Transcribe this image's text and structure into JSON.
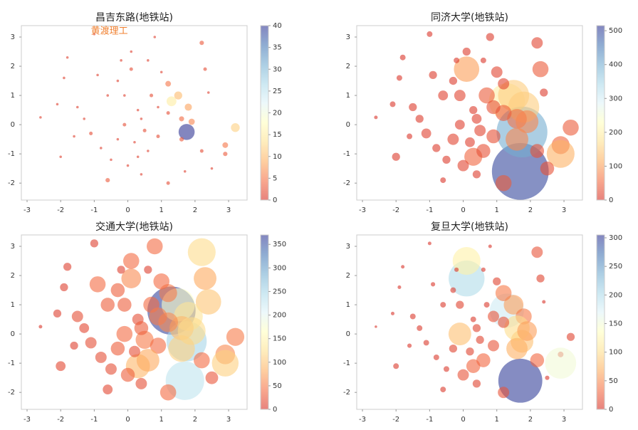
{
  "chart_data": [
    {
      "type": "scatter",
      "title": "昌吉东路(地铁站)",
      "cmap": "RdYlBu",
      "alpha": 0.6,
      "annotations": [
        {
          "text": "黄渡理工",
          "x": -1.1,
          "y": 3.2,
          "color": "#f08030"
        }
      ],
      "x": [
        1.7,
        1.3,
        1.75,
        1.5,
        2.2,
        2.3,
        2.4,
        3.2,
        2.9,
        2.9,
        2.5,
        0.1,
        0.8,
        0.7,
        0.3,
        -0.1,
        0.5,
        1.8,
        1.6,
        1.9,
        1.6,
        1.2,
        0.9,
        1.2,
        0.1,
        -0.6,
        -0.9,
        -1.0,
        -0.1,
        0.3,
        -0.3,
        -1.1,
        -1.5,
        -1.9,
        -2.0,
        -0.6,
        0.0,
        0.4,
        0.6,
        1.2,
        -0.8,
        -1.3,
        -1.6,
        0.2,
        0.9,
        -0.2,
        1.0,
        -2.6,
        -1.8,
        -0.5,
        0.6,
        2.2,
        -2.1,
        -0.3,
        0.4
      ],
      "y": [
        -1.6,
        0.8,
        -0.25,
        1.0,
        2.8,
        1.9,
        1.1,
        -0.1,
        -0.7,
        -1.0,
        -1.5,
        1.9,
        3.0,
        1.0,
        -1.1,
        0.0,
        -0.2,
        0.6,
        0.2,
        0.1,
        -0.5,
        0.4,
        -0.4,
        1.4,
        2.5,
        1.0,
        1.7,
        3.1,
        1.0,
        0.5,
        -0.5,
        -0.3,
        0.6,
        1.6,
        -1.1,
        -1.9,
        -1.4,
        -1.7,
        -0.9,
        -2.0,
        -0.8,
        0.2,
        -0.4,
        -0.6,
        0.6,
        2.2,
        1.8,
        0.25,
        2.3,
        -1.2,
        2.2,
        -0.9,
        0.7,
        1.5,
        0.2
      ],
      "sizes": [
        1,
        15,
        40,
        10,
        3,
        2,
        1,
        12,
        5,
        3,
        1,
        2,
        1,
        2,
        1,
        2,
        2,
        8,
        4,
        6,
        3,
        2,
        2,
        5,
        1,
        1,
        1,
        1,
        1,
        1,
        1,
        2,
        1,
        1,
        1,
        3,
        1,
        1,
        1,
        2,
        1,
        1,
        1,
        1,
        1,
        1,
        1,
        1,
        1,
        1,
        1,
        2,
        1,
        1,
        1
      ],
      "xlim": [
        -3.17,
        3.55
      ],
      "ylim": [
        -2.58,
        3.39
      ],
      "xticks": [
        -3,
        -2,
        -1,
        0,
        1,
        2,
        3
      ],
      "yticks": [
        -2,
        -1,
        0,
        1,
        2,
        3
      ],
      "clim": [
        0,
        40
      ],
      "cticks": [
        0,
        5,
        10,
        15,
        20,
        25,
        30,
        35,
        40
      ]
    },
    {
      "type": "scatter",
      "title": "同济大学(地铁站)",
      "cmap": "RdYlBu",
      "alpha": 0.6,
      "x": [
        1.7,
        1.3,
        1.75,
        1.5,
        2.2,
        2.3,
        2.4,
        3.2,
        2.9,
        2.9,
        2.5,
        0.1,
        0.8,
        0.7,
        0.3,
        -0.1,
        0.5,
        1.8,
        1.6,
        1.9,
        1.6,
        1.2,
        0.9,
        1.2,
        0.1,
        -0.6,
        -0.9,
        -1.0,
        -0.1,
        0.3,
        -0.3,
        -1.1,
        -1.5,
        -1.9,
        -2.0,
        -0.6,
        0.0,
        0.4,
        0.6,
        1.2,
        -0.8,
        -1.3,
        -1.6,
        0.2,
        0.9,
        -0.2,
        1.0,
        -2.6,
        -1.8,
        -0.5,
        0.6,
        2.2,
        -2.1,
        -0.3,
        0.4
      ],
      "y": [
        -1.6,
        0.8,
        -0.25,
        1.0,
        2.8,
        1.9,
        1.1,
        -0.1,
        -0.7,
        -1.0,
        -1.5,
        1.9,
        3.0,
        1.0,
        -1.1,
        0.0,
        -0.2,
        0.6,
        0.2,
        0.1,
        -0.5,
        0.4,
        -0.4,
        1.4,
        2.5,
        1.0,
        1.7,
        3.1,
        1.0,
        0.5,
        -0.5,
        -0.3,
        0.6,
        1.6,
        -1.1,
        -1.9,
        -1.4,
        -1.7,
        -0.9,
        -2.0,
        -0.8,
        0.2,
        -0.4,
        -0.6,
        0.6,
        2.2,
        1.8,
        0.25,
        2.3,
        -1.2,
        2.2,
        -0.9,
        0.7,
        1.5,
        0.2
      ],
      "sizes": [
        500,
        200,
        400,
        150,
        20,
        40,
        10,
        40,
        50,
        120,
        30,
        100,
        10,
        40,
        50,
        15,
        20,
        150,
        60,
        80,
        80,
        40,
        30,
        20,
        10,
        15,
        10,
        5,
        20,
        10,
        20,
        15,
        10,
        5,
        10,
        5,
        20,
        10,
        30,
        40,
        10,
        10,
        5,
        15,
        30,
        5,
        20,
        2,
        5,
        10,
        5,
        30,
        5,
        10,
        15
      ],
      "xlim": [
        -3.17,
        3.55
      ],
      "ylim": [
        -2.58,
        3.39
      ],
      "xticks": [
        -3,
        -2,
        -1,
        0,
        1,
        2,
        3
      ],
      "yticks": [
        -2,
        -1,
        0,
        1,
        2,
        3
      ],
      "clim": [
        0,
        515
      ],
      "cticks": [
        0,
        100,
        200,
        300,
        400,
        500
      ]
    },
    {
      "type": "scatter",
      "title": "交通大学(地铁站)",
      "cmap": "RdYlBu",
      "alpha": 0.6,
      "x": [
        1.7,
        1.3,
        1.75,
        1.5,
        2.2,
        2.3,
        2.4,
        3.2,
        2.9,
        2.9,
        2.5,
        0.1,
        0.8,
        0.7,
        0.3,
        -0.1,
        0.5,
        1.8,
        1.6,
        1.9,
        1.6,
        1.2,
        0.9,
        1.2,
        0.1,
        -0.6,
        -0.9,
        -1.0,
        -0.1,
        0.3,
        -0.3,
        -1.1,
        -1.5,
        -1.9,
        -2.0,
        -0.6,
        0.0,
        0.4,
        0.6,
        1.2,
        -0.8,
        -1.3,
        -1.6,
        0.2,
        0.9,
        -0.2,
        1.0,
        -2.6,
        -1.8,
        -0.5,
        0.6,
        2.2,
        -2.1,
        -0.3,
        0.4
      ],
      "y": [
        -1.6,
        0.8,
        -0.25,
        1.0,
        2.8,
        1.9,
        1.1,
        -0.1,
        -0.7,
        -1.0,
        -1.5,
        1.9,
        3.0,
        1.0,
        -1.1,
        0.0,
        -0.2,
        0.6,
        0.2,
        0.1,
        -0.5,
        0.4,
        -0.4,
        1.4,
        2.5,
        1.0,
        1.7,
        3.1,
        1.0,
        0.5,
        -0.5,
        -0.3,
        0.6,
        1.6,
        -1.1,
        -1.9,
        -1.4,
        -1.7,
        -0.9,
        -2.0,
        -0.8,
        0.2,
        -0.4,
        -0.6,
        0.6,
        2.2,
        1.8,
        0.25,
        2.3,
        -1.2,
        2.2,
        -0.9,
        0.7,
        1.5,
        0.2
      ],
      "sizes": [
        230,
        360,
        250,
        170,
        120,
        80,
        100,
        50,
        60,
        110,
        25,
        60,
        40,
        40,
        90,
        40,
        50,
        130,
        90,
        120,
        110,
        60,
        40,
        50,
        40,
        30,
        40,
        10,
        30,
        20,
        30,
        20,
        20,
        10,
        15,
        15,
        30,
        20,
        80,
        40,
        20,
        15,
        10,
        20,
        50,
        10,
        40,
        2,
        10,
        20,
        10,
        40,
        10,
        30,
        30
      ],
      "xlim": [
        -3.17,
        3.55
      ],
      "ylim": [
        -2.58,
        3.39
      ],
      "xticks": [
        -3,
        -2,
        -1,
        0,
        1,
        2,
        3
      ],
      "yticks": [
        -2,
        -1,
        0,
        1,
        2,
        3
      ],
      "clim": [
        0,
        370
      ],
      "cticks": [
        0,
        50,
        100,
        150,
        200,
        250,
        300,
        350
      ]
    },
    {
      "type": "scatter",
      "title": "复旦大学(地铁站)",
      "cmap": "RdYlBu",
      "alpha": 0.6,
      "x": [
        1.7,
        1.3,
        1.75,
        1.5,
        2.2,
        2.3,
        2.4,
        3.2,
        2.9,
        2.9,
        2.5,
        0.1,
        0.8,
        0.7,
        0.3,
        -0.1,
        0.5,
        1.8,
        1.6,
        1.9,
        1.6,
        1.2,
        0.9,
        1.2,
        0.1,
        -0.6,
        -0.9,
        -1.0,
        -0.1,
        0.3,
        -0.3,
        -1.1,
        -1.5,
        -1.9,
        -2.0,
        -0.6,
        0.0,
        0.4,
        0.6,
        1.2,
        -0.8,
        -1.3,
        -1.6,
        0.2,
        0.9,
        -0.2,
        1.0,
        -2.6,
        -1.8,
        -0.5,
        0.6,
        2.2,
        -2.1,
        -0.3,
        0.4
      ],
      "y": [
        -1.6,
        0.8,
        -0.25,
        1.0,
        2.8,
        1.9,
        1.1,
        -0.1,
        -0.7,
        -1.0,
        -1.5,
        1.9,
        3.0,
        1.0,
        -1.1,
        0.0,
        -0.2,
        0.6,
        0.2,
        0.1,
        -0.5,
        0.4,
        -0.4,
        1.4,
        2.5,
        1.0,
        1.7,
        3.1,
        1.0,
        0.5,
        -0.5,
        -0.3,
        0.6,
        1.6,
        -1.1,
        -1.9,
        -1.4,
        -1.7,
        -0.9,
        -2.0,
        -0.8,
        0.2,
        -0.4,
        -0.6,
        0.6,
        2.2,
        1.8,
        0.25,
        2.3,
        -1.2,
        2.2,
        -0.9,
        0.7,
        1.5,
        0.2
      ],
      "sizes": [
        300,
        180,
        80,
        60,
        20,
        10,
        2,
        10,
        5,
        150,
        3,
        200,
        2,
        5,
        30,
        80,
        10,
        40,
        100,
        60,
        70,
        20,
        20,
        40,
        120,
        5,
        3,
        2,
        10,
        5,
        10,
        5,
        5,
        2,
        5,
        5,
        20,
        10,
        30,
        20,
        5,
        5,
        3,
        10,
        20,
        3,
        10,
        1,
        2,
        5,
        3,
        30,
        2,
        5,
        10
      ],
      "xlim": [
        -3.17,
        3.55
      ],
      "ylim": [
        -2.58,
        3.39
      ],
      "xticks": [
        -3,
        -2,
        -1,
        0,
        1,
        2,
        3
      ],
      "yticks": [
        -2,
        -1,
        0,
        1,
        2,
        3
      ],
      "clim": [
        0,
        305
      ],
      "cticks": [
        0,
        50,
        100,
        150,
        200,
        250,
        300
      ]
    }
  ]
}
